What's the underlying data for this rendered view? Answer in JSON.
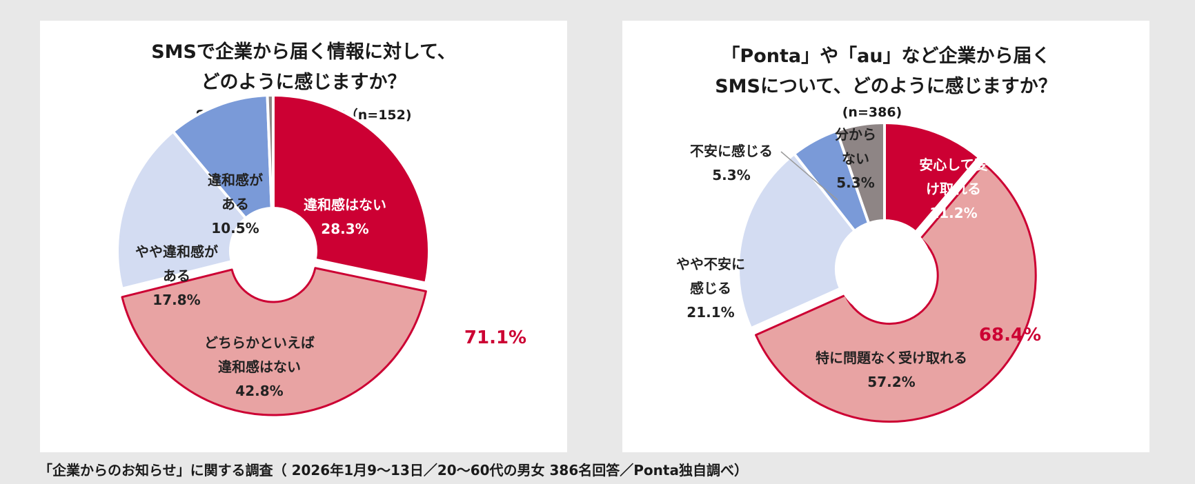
{
  "footer": "「企業からのお知らせ」に関する調査（ 2026年1月9〜13日／20〜60代の男女 386名回答／Ponta独自調べ）",
  "chart_data": [
    {
      "type": "pie",
      "donut": true,
      "title_lines": [
        "SMSで企業から届く情報に対して、",
        "どのように感じますか？"
      ],
      "subtitle": "SMSを受け取っている方（n=152)",
      "slices": [
        {
          "label_lines": [
            "違和感はない"
          ],
          "value": 28.3,
          "value_label": "28.3%",
          "color": "#cc0033",
          "text_color": "#ffffff"
        },
        {
          "label_lines": [
            "どちらかといえば",
            "違和感はない"
          ],
          "value": 42.8,
          "value_label": "42.8%",
          "color": "#e8a3a3",
          "text_color": "#222222"
        },
        {
          "label_lines": [
            "やや違和感が",
            "ある"
          ],
          "value": 17.8,
          "value_label": "17.8%",
          "color": "#d3dcf2",
          "text_color": "#222222"
        },
        {
          "label_lines": [
            "違和感が",
            "ある"
          ],
          "value": 10.5,
          "value_label": "10.5%",
          "color": "#7a9ad8",
          "text_color": "#222222"
        },
        {
          "label_lines": [],
          "value": 0.6,
          "value_label": "",
          "color": "#8e8585",
          "text_color": "#222222"
        }
      ],
      "highlight_total": "71.1%",
      "highlight_color": "#cc0033"
    },
    {
      "type": "pie",
      "donut": true,
      "title_lines": [
        "「Ponta」や「au」など企業から届く",
        "SMSについて、どのように感じますか？"
      ],
      "subtitle": "(n=386)",
      "slices": [
        {
          "label_lines": [
            "安心して受",
            "け取れる"
          ],
          "value": 11.2,
          "value_label": "11.2%",
          "color": "#cc0033",
          "text_color": "#ffffff"
        },
        {
          "label_lines": [
            "特に問題なく受け取れる"
          ],
          "value": 57.2,
          "value_label": "57.2%",
          "color": "#e8a3a3",
          "text_color": "#222222"
        },
        {
          "label_lines": [
            "やや不安に",
            "感じる"
          ],
          "value": 21.1,
          "value_label": "21.1%",
          "color": "#d3dcf2",
          "text_color": "#222222"
        },
        {
          "label_lines": [
            "不安に感じる"
          ],
          "value": 5.3,
          "value_label": "5.3%",
          "color": "#7a9ad8",
          "text_color": "#222222"
        },
        {
          "label_lines": [
            "分から",
            "ない"
          ],
          "value": 5.3,
          "value_label": "5.3%",
          "color": "#8e8585",
          "text_color": "#222222"
        }
      ],
      "highlight_total": "68.4%",
      "highlight_color": "#cc0033"
    }
  ]
}
